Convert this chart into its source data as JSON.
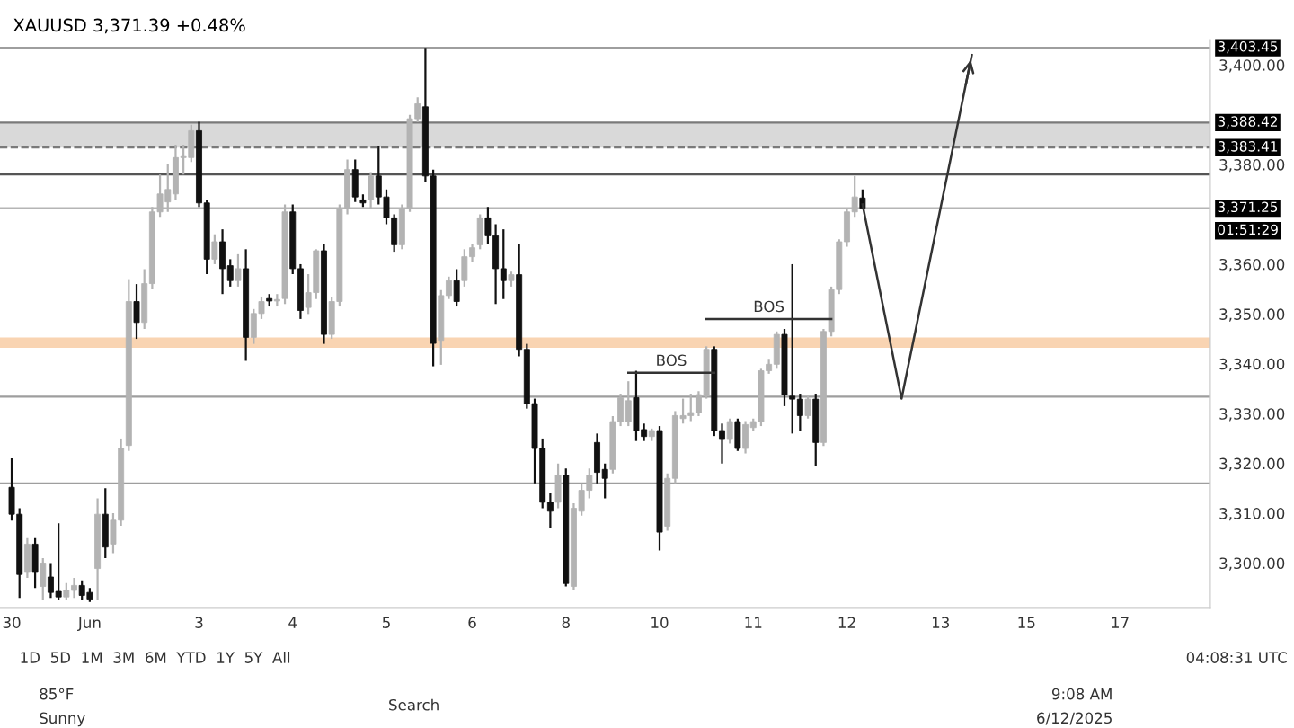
{
  "chart_data": {
    "type": "candlestick",
    "title": "XAUUSD 3,371.39 +0.48%",
    "categories": [
      "30",
      null,
      null,
      null,
      null,
      null,
      null,
      null,
      null,
      null,
      "Jun",
      null,
      null,
      null,
      null,
      null,
      null,
      null,
      null,
      null,
      null,
      null,
      null,
      null,
      "3",
      null,
      null,
      null,
      null,
      null,
      null,
      null,
      null,
      null,
      null,
      null,
      "4",
      null,
      null,
      null,
      null,
      null,
      null,
      null,
      null,
      null,
      null,
      null,
      "5",
      null,
      null,
      null,
      null,
      null,
      null,
      null,
      null,
      null,
      null,
      "6",
      null,
      null,
      null,
      null,
      null,
      null,
      null,
      null,
      null,
      null,
      null,
      "8",
      null,
      null,
      null,
      null,
      null,
      null,
      null,
      null,
      null,
      null,
      null,
      "10",
      null,
      null,
      null,
      null,
      null,
      null,
      null,
      null,
      null,
      null,
      null,
      "11",
      null,
      null,
      null,
      null,
      null,
      null,
      null,
      null,
      null,
      null,
      null,
      "12",
      null,
      null,
      null,
      null,
      null,
      null,
      null,
      null,
      null,
      null,
      null,
      "13",
      null,
      null,
      null,
      null,
      null,
      null,
      null,
      null,
      null,
      null,
      "15",
      null,
      null,
      null,
      null,
      null,
      null,
      null,
      null,
      null,
      null,
      null,
      "17",
      null,
      null,
      null,
      null,
      null,
      null,
      null,
      null,
      null,
      null,
      null
    ],
    "ohlc": [
      [
        3315.2,
        3321,
        3308.5,
        3309.8
      ],
      [
        3309.8,
        3311,
        3293,
        3297.7
      ],
      [
        3298.3,
        3305,
        3297,
        3303.8
      ],
      [
        3303.8,
        3305,
        3295,
        3298.3
      ],
      [
        3295.3,
        3301,
        3292.5,
        3300.0
      ],
      [
        3297.2,
        3300,
        3293,
        3294.1
      ],
      [
        3294.3,
        3308,
        3292.5,
        3293.2
      ],
      [
        3293.2,
        3296,
        3292.5,
        3294.5
      ],
      [
        3294.5,
        3297,
        3293,
        3295.5
      ],
      [
        3295.5,
        3296.5,
        3292.5,
        3293.5
      ],
      [
        3294.1,
        3295,
        3292.2,
        3292.6
      ],
      [
        3298.9,
        3313,
        3292.5,
        3309.8
      ],
      [
        3309.8,
        3315,
        3301,
        3303.2
      ],
      [
        3303.8,
        3310,
        3302,
        3308.6
      ],
      [
        3308.6,
        3325,
        3307.5,
        3323.0
      ],
      [
        3323.6,
        3357,
        3322.5,
        3352.5
      ],
      [
        3352.5,
        3356,
        3345,
        3348.3
      ],
      [
        3348.3,
        3359,
        3347,
        3356.1
      ],
      [
        3356.1,
        3371.5,
        3355,
        3370.5
      ],
      [
        3370.5,
        3378,
        3369.5,
        3374.1
      ],
      [
        3372.5,
        3380,
        3370.5,
        3375.0
      ],
      [
        3374.1,
        3384,
        3373,
        3381.4
      ],
      [
        3381.4,
        3384,
        3378,
        3381.6
      ],
      [
        3381.4,
        3388,
        3380.5,
        3386.8
      ],
      [
        3386.8,
        3388.6,
        3371.5,
        3372.3
      ],
      [
        3372.3,
        3373,
        3358,
        3361.0
      ],
      [
        3361.0,
        3366,
        3360,
        3364.5
      ],
      [
        3364.5,
        3367,
        3354,
        3359.1
      ],
      [
        3359.7,
        3361,
        3355.5,
        3356.7
      ],
      [
        3356.7,
        3362,
        3355.5,
        3359.1
      ],
      [
        3359.1,
        3363,
        3340.6,
        3345.3
      ],
      [
        3345.3,
        3351,
        3344,
        3350.1
      ],
      [
        3350.1,
        3353.5,
        3349,
        3352.5
      ],
      [
        3353.1,
        3354,
        3351.5,
        3352.6
      ],
      [
        3352.6,
        3354,
        3351.5,
        3352.9
      ],
      [
        3353.1,
        3372,
        3352,
        3370.5
      ],
      [
        3370.5,
        3372,
        3358,
        3359.1
      ],
      [
        3359.1,
        3360,
        3349,
        3350.7
      ],
      [
        3351.3,
        3358,
        3350,
        3354.3
      ],
      [
        3354.3,
        3363,
        3353,
        3362.7
      ],
      [
        3362.7,
        3364,
        3344,
        3345.9
      ],
      [
        3345.9,
        3353.5,
        3345,
        3352.5
      ],
      [
        3352.5,
        3372,
        3351.5,
        3371.1
      ],
      [
        3371.1,
        3381,
        3370,
        3379.0
      ],
      [
        3379.0,
        3381,
        3372.5,
        3373.5
      ],
      [
        3372.9,
        3374,
        3371.5,
        3372.3
      ],
      [
        3372.9,
        3378.5,
        3371,
        3377.7
      ],
      [
        3377.7,
        3383.8,
        3372,
        3373.5
      ],
      [
        3373.5,
        3375,
        3368,
        3369.3
      ],
      [
        3369.3,
        3370,
        3362.5,
        3363.9
      ],
      [
        3363.9,
        3372,
        3363,
        3371.1
      ],
      [
        3371.1,
        3390,
        3370.5,
        3389.2
      ],
      [
        3389.2,
        3393.5,
        3388.5,
        3392.2
      ],
      [
        3391.6,
        3403.45,
        3376.5,
        3377.7
      ],
      [
        3377.7,
        3379,
        3339.5,
        3344.1
      ],
      [
        3344.7,
        3354.8,
        3339.8,
        3353.7
      ],
      [
        3353.7,
        3357.5,
        3353,
        3356.7
      ],
      [
        3356.7,
        3359,
        3351.5,
        3352.5
      ],
      [
        3356.7,
        3363,
        3355.5,
        3361.5
      ],
      [
        3361.5,
        3364,
        3360.5,
        3363.3
      ],
      [
        3363.9,
        3370,
        3363,
        3369.3
      ],
      [
        3369.3,
        3371.5,
        3364,
        3365.7
      ],
      [
        3365.7,
        3368,
        3352,
        3359.1
      ],
      [
        3359.1,
        3367,
        3353,
        3356.7
      ],
      [
        3356.7,
        3358.5,
        3355.5,
        3357.9
      ],
      [
        3357.9,
        3364,
        3341.5,
        3342.9
      ],
      [
        3342.9,
        3344,
        3331,
        3332.0
      ],
      [
        3332.0,
        3333,
        3316,
        3323.0
      ],
      [
        3323.0,
        3325,
        3311,
        3312.2
      ],
      [
        3312.2,
        3314,
        3307,
        3310.4
      ],
      [
        3312.2,
        3320,
        3311,
        3317.6
      ],
      [
        3317.6,
        3319,
        3295.3,
        3295.9
      ],
      [
        3295.3,
        3312,
        3294.5,
        3311.0
      ],
      [
        3310.4,
        3316,
        3309.5,
        3314.6
      ],
      [
        3314.6,
        3319,
        3313,
        3317.6
      ],
      [
        3324.2,
        3326,
        3316,
        3318.2
      ],
      [
        3318.8,
        3320,
        3313,
        3317.0
      ],
      [
        3318.8,
        3329.5,
        3318,
        3328.4
      ],
      [
        3328.4,
        3334,
        3327.5,
        3333.2
      ],
      [
        3328.4,
        3336.5,
        3327.5,
        3332.6
      ],
      [
        3333.2,
        3338.6,
        3324.5,
        3326.6
      ],
      [
        3326.8,
        3328,
        3324.5,
        3325.4
      ],
      [
        3325.4,
        3327,
        3324.5,
        3326.6
      ],
      [
        3326.6,
        3327.5,
        3302.5,
        3306.2
      ],
      [
        3307.4,
        3318,
        3306.5,
        3317.0
      ],
      [
        3317.0,
        3330.5,
        3316,
        3329.6
      ],
      [
        3329.0,
        3333,
        3328,
        3329.6
      ],
      [
        3329.6,
        3334,
        3328.5,
        3330.2
      ],
      [
        3330.2,
        3334.5,
        3329.5,
        3333.8
      ],
      [
        3333.8,
        3343.5,
        3333,
        3342.9
      ],
      [
        3342.9,
        3343.5,
        3325.5,
        3326.6
      ],
      [
        3326.6,
        3328,
        3320,
        3324.8
      ],
      [
        3324.8,
        3329,
        3324,
        3328.4
      ],
      [
        3328.4,
        3329,
        3322.5,
        3323.0
      ],
      [
        3323.0,
        3328.5,
        3322,
        3327.8
      ],
      [
        3327.2,
        3329,
        3326.5,
        3328.4
      ],
      [
        3328.4,
        3339,
        3327.5,
        3338.6
      ],
      [
        3338.6,
        3341,
        3338,
        3339.9
      ],
      [
        3339.9,
        3346.5,
        3339,
        3345.9
      ],
      [
        3345.9,
        3347,
        3331.5,
        3333.8
      ],
      [
        3333.5,
        3360,
        3326,
        3332.9
      ],
      [
        3332.9,
        3334,
        3326.5,
        3329.6
      ],
      [
        3329.6,
        3333.5,
        3329,
        3332.9
      ],
      [
        3332.9,
        3334,
        3319.5,
        3324.2
      ],
      [
        3324.2,
        3347,
        3323.5,
        3346.5
      ],
      [
        3346.5,
        3355.5,
        3345.5,
        3354.9
      ],
      [
        3354.9,
        3365,
        3354,
        3364.5
      ],
      [
        3364.5,
        3371,
        3363.5,
        3370.5
      ],
      [
        3370.5,
        3377.7,
        3369.5,
        3373.5
      ],
      [
        3373.3,
        3375,
        3371,
        3371.25
      ],
      null,
      null,
      null,
      null,
      null,
      null,
      null,
      null,
      null,
      null,
      null,
      null,
      null,
      null,
      null,
      null,
      null,
      null,
      null,
      null,
      null,
      null,
      null,
      null,
      null,
      null,
      null,
      null,
      null,
      null,
      null,
      null,
      null,
      null,
      null,
      null,
      null,
      null,
      null,
      null,
      null,
      null,
      null,
      null
    ],
    "series": [
      {
        "type": "line",
        "name": "BOS",
        "color": "#333333",
        "values": [
          null,
          null,
          null,
          null,
          null,
          null,
          null,
          null,
          null,
          null,
          null,
          null,
          null,
          null,
          null,
          null,
          null,
          null,
          null,
          null,
          null,
          null,
          null,
          null,
          null,
          null,
          null,
          null,
          null,
          null,
          null,
          null,
          null,
          null,
          null,
          null,
          null,
          null,
          null,
          null,
          null,
          null,
          null,
          null,
          null,
          null,
          null,
          null,
          null,
          null,
          null,
          null,
          null,
          null,
          null,
          null,
          null,
          null,
          null,
          null,
          null,
          null,
          null,
          null,
          null,
          null,
          null,
          null,
          null,
          null,
          null,
          null,
          null,
          null,
          null,
          null,
          null,
          null,
          null,
          3338.2,
          null,
          null,
          null,
          null,
          null,
          null,
          null,
          null,
          null,
          null,
          3338.2,
          null,
          null,
          null,
          null,
          null,
          null,
          null,
          null,
          null,
          null,
          null,
          null,
          null,
          null,
          null,
          null,
          null,
          null,
          null,
          null,
          null,
          null,
          null,
          null,
          null,
          null,
          null,
          null,
          null,
          null,
          null,
          null,
          null,
          null,
          null,
          null,
          null,
          null,
          null,
          null,
          null,
          null,
          null,
          null,
          null,
          null,
          null,
          null,
          null,
          null,
          null,
          null,
          null,
          null,
          null,
          null,
          null,
          null,
          null,
          null,
          null,
          null,
          null
        ]
      },
      {
        "type": "line",
        "name": "BOS",
        "color": "#333333",
        "values": [
          null,
          null,
          null,
          null,
          null,
          null,
          null,
          null,
          null,
          null,
          null,
          null,
          null,
          null,
          null,
          null,
          null,
          null,
          null,
          null,
          null,
          null,
          null,
          null,
          null,
          null,
          null,
          null,
          null,
          null,
          null,
          null,
          null,
          null,
          null,
          null,
          null,
          null,
          null,
          null,
          null,
          null,
          null,
          null,
          null,
          null,
          null,
          null,
          null,
          null,
          null,
          null,
          null,
          null,
          null,
          null,
          null,
          null,
          null,
          null,
          null,
          null,
          null,
          null,
          null,
          null,
          null,
          null,
          null,
          null,
          null,
          null,
          null,
          null,
          null,
          null,
          null,
          null,
          null,
          null,
          null,
          null,
          null,
          null,
          null,
          null,
          null,
          null,
          null,
          3349.0,
          null,
          null,
          null,
          null,
          null,
          null,
          null,
          null,
          null,
          null,
          null,
          null,
          null,
          null,
          null,
          3349.0,
          null,
          null,
          null,
          null,
          null,
          null,
          null,
          null,
          null,
          null,
          null,
          null,
          null,
          null,
          null,
          null,
          null,
          null,
          null,
          null,
          null,
          null,
          null,
          null,
          null,
          null,
          null,
          null,
          null,
          null,
          null,
          null,
          null,
          null,
          null,
          null,
          null,
          null,
          null,
          null,
          null,
          null,
          null,
          null,
          null,
          null,
          null,
          null
        ]
      },
      {
        "type": "line",
        "color": "#333333",
        "values": [
          null,
          null,
          null,
          null,
          null,
          null,
          null,
          null,
          null,
          null,
          null,
          null,
          null,
          null,
          null,
          null,
          null,
          null,
          null,
          null,
          null,
          null,
          null,
          null,
          null,
          null,
          null,
          null,
          null,
          null,
          null,
          null,
          null,
          null,
          null,
          null,
          null,
          null,
          null,
          null,
          null,
          null,
          null,
          null,
          null,
          null,
          null,
          null,
          null,
          null,
          null,
          null,
          null,
          null,
          null,
          null,
          null,
          null,
          null,
          null,
          null,
          null,
          null,
          null,
          null,
          null,
          null,
          null,
          null,
          null,
          null,
          null,
          null,
          null,
          null,
          null,
          null,
          null,
          null,
          null,
          null,
          null,
          null,
          null,
          null,
          null,
          null,
          null,
          null,
          null,
          null,
          null,
          null,
          null,
          null,
          null,
          null,
          null,
          null,
          null,
          null,
          null,
          null,
          null,
          null,
          null,
          null,
          null,
          null,
          3372,
          null,
          null,
          null,
          null,
          3333,
          null,
          null,
          null,
          null,
          null,
          null,
          null,
          null,
          3402,
          null,
          null,
          null,
          null,
          null,
          null,
          null,
          null,
          null,
          null,
          null,
          null,
          null,
          null,
          null,
          null,
          null,
          null,
          null,
          null,
          null,
          null,
          null,
          null,
          null,
          null,
          null,
          null,
          null,
          null
        ]
      }
    ],
    "ylim": [
      3291,
      3405
    ],
    "yticks": [
      {
        "value": 3300,
        "label": "3,300.00"
      },
      {
        "value": 3310,
        "label": "3,310.00"
      },
      {
        "value": 3320,
        "label": "3,320.00"
      },
      {
        "value": 3330,
        "label": "3,330.00"
      },
      {
        "value": 3340,
        "label": "3,340.00"
      },
      {
        "value": 3350,
        "label": "3,350.00"
      },
      {
        "value": 3360,
        "label": "3,360.00"
      },
      {
        "value": 3380,
        "label": "3,380.00"
      },
      {
        "value": 3400,
        "label": "3,400.00"
      }
    ],
    "ref_lines": [
      {
        "axis": "y",
        "value": 3403.45,
        "label": "3,403.45",
        "color": "#9e9e9e"
      },
      {
        "axis": "y",
        "value": 3388.42,
        "label": "3,388.42",
        "color": "#7a7a7a"
      },
      {
        "axis": "y",
        "value": 3383.41,
        "label": "3,383.41",
        "color": "#7a7a7a",
        "line_style": "dashed"
      },
      {
        "axis": "y",
        "value": 3378,
        "color": "#555555"
      },
      {
        "axis": "y",
        "value": 3371.25,
        "label": "3,371.25",
        "color": "#b5b5b5"
      },
      {
        "axis": "y",
        "value": 3333.4,
        "color": "#9e9e9e"
      },
      {
        "axis": "y",
        "value": 3316,
        "color": "#9e9e9e"
      }
    ],
    "bands": [
      {
        "axis": "y",
        "from": 3383.41,
        "to": 3388.42,
        "color": "#d9d9d9"
      },
      {
        "axis": "y",
        "from": 3343.2,
        "to": 3345.3,
        "color": "#f9d4b2"
      }
    ],
    "annotations": [
      "01:51:29",
      "1D  5D  1M  3M  6M  YTD  1Y  5Y  All",
      "04:08:31 UTC",
      "85°F",
      "Sunny",
      "Search",
      "9:08 AM",
      "6/12/2025"
    ]
  }
}
